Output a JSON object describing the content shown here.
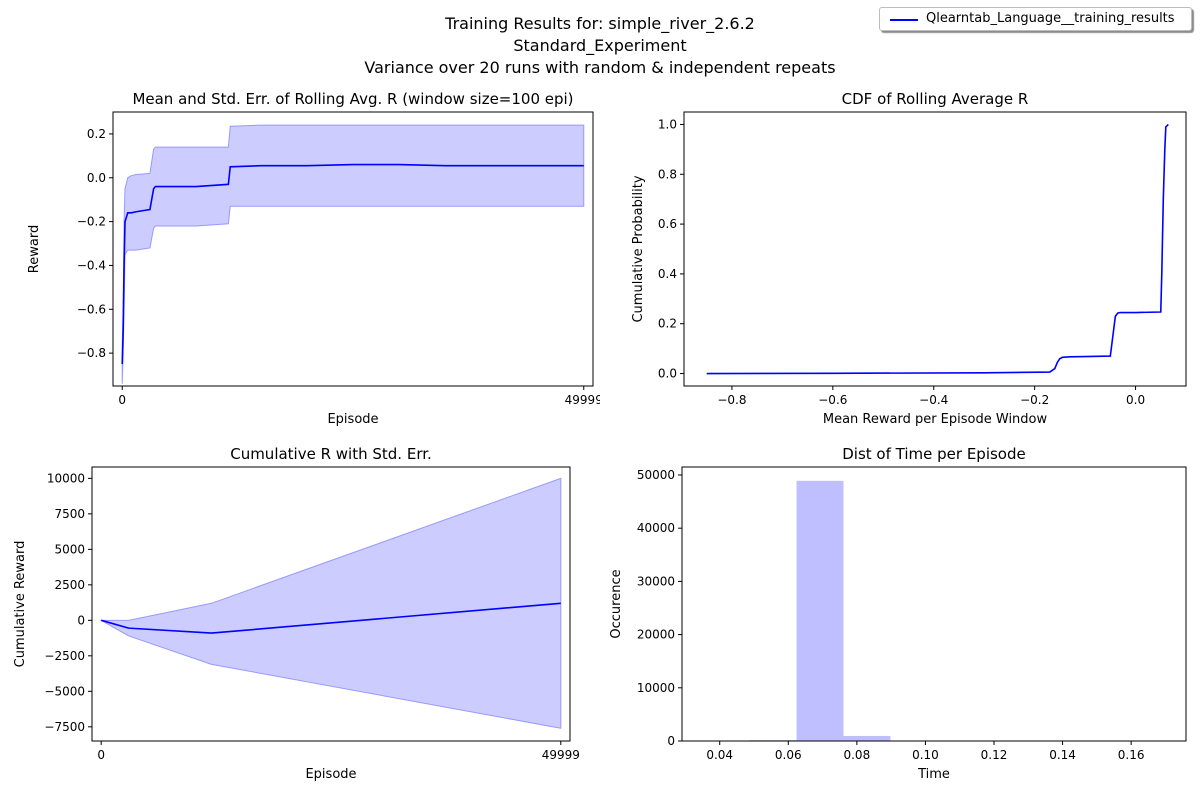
{
  "figure": {
    "title_lines": [
      "Training Results for: simple_river_2.6.2",
      "Standard_Experiment",
      "Variance over 20 runs with random & independent repeats"
    ],
    "legend_label": "Qlearntab_Language__training_results",
    "line_color": "#0000ff",
    "band_color": "#ccccff",
    "band_edge_color": "#9999ff"
  },
  "chart_data": [
    {
      "type": "line",
      "title": "Mean and Std. Err. of Rolling Avg. R (window size=100 epi)",
      "xlabel": "Episode",
      "ylabel": "Reward",
      "xlim": [
        -1000,
        51000
      ],
      "ylim": [
        -0.95,
        0.3
      ],
      "xticks": [
        0,
        49999
      ],
      "xtick_labels": [
        "0",
        "49999"
      ],
      "yticks": [
        -0.8,
        -0.6,
        -0.4,
        -0.2,
        0.0,
        0.2
      ],
      "ytick_labels": [
        "−0.8",
        "−0.6",
        "−0.4",
        "−0.2",
        "0.0",
        "0.2"
      ],
      "grid": false,
      "series": [
        {
          "x": [
            0,
            100,
            200,
            300,
            600,
            1000,
            1500,
            3000,
            3400,
            3600,
            5000,
            8000,
            11500,
            11700,
            15000,
            20000,
            25000,
            30000,
            35000,
            40000,
            45000,
            49999
          ],
          "mean": [
            -0.85,
            -0.7,
            -0.4,
            -0.2,
            -0.16,
            -0.16,
            -0.155,
            -0.145,
            -0.05,
            -0.04,
            -0.04,
            -0.04,
            -0.03,
            0.05,
            0.055,
            0.055,
            0.06,
            0.06,
            0.055,
            0.055,
            0.055,
            0.055
          ],
          "upper": [
            -0.76,
            -0.6,
            -0.2,
            -0.05,
            0.0,
            0.01,
            0.015,
            0.02,
            0.13,
            0.14,
            0.14,
            0.14,
            0.14,
            0.235,
            0.24,
            0.24,
            0.24,
            0.24,
            0.24,
            0.24,
            0.24,
            0.24
          ],
          "lower": [
            -0.94,
            -0.8,
            -0.6,
            -0.35,
            -0.33,
            -0.33,
            -0.33,
            -0.32,
            -0.23,
            -0.22,
            -0.22,
            -0.22,
            -0.21,
            -0.13,
            -0.13,
            -0.13,
            -0.13,
            -0.13,
            -0.13,
            -0.13,
            -0.13,
            -0.13
          ]
        }
      ]
    },
    {
      "type": "line",
      "title": "CDF of Rolling Average R",
      "xlabel": "Mean Reward per Episode Window",
      "ylabel": "Cumulative Probability",
      "xlim": [
        -0.895,
        0.1
      ],
      "ylim": [
        -0.05,
        1.05
      ],
      "xticks": [
        -0.8,
        -0.6,
        -0.4,
        -0.2,
        0.0
      ],
      "xtick_labels": [
        "−0.8",
        "−0.6",
        "−0.4",
        "−0.2",
        "0.0"
      ],
      "yticks": [
        0.0,
        0.2,
        0.4,
        0.6,
        0.8,
        1.0
      ],
      "ytick_labels": [
        "0.0",
        "0.2",
        "0.4",
        "0.6",
        "0.8",
        "1.0"
      ],
      "grid": false,
      "series": [
        {
          "x": [
            -0.85,
            -0.6,
            -0.3,
            -0.17,
            -0.16,
            -0.155,
            -0.15,
            -0.145,
            -0.13,
            -0.1,
            -0.05,
            -0.045,
            -0.04,
            -0.035,
            -0.03,
            0.0,
            0.05,
            0.052,
            0.055,
            0.058,
            0.06,
            0.065
          ],
          "y": [
            0.0,
            0.001,
            0.003,
            0.006,
            0.02,
            0.045,
            0.06,
            0.065,
            0.067,
            0.068,
            0.07,
            0.15,
            0.23,
            0.243,
            0.245,
            0.245,
            0.247,
            0.4,
            0.7,
            0.9,
            0.99,
            1.0
          ]
        }
      ]
    },
    {
      "type": "line",
      "title": "Cumulative R with Std. Err.",
      "xlabel": "Episode",
      "ylabel": "Cumulative Reward",
      "xlim": [
        -1000,
        51000
      ],
      "ylim": [
        -8500,
        10800
      ],
      "xticks": [
        0,
        49999
      ],
      "xtick_labels": [
        "0",
        "49999"
      ],
      "yticks": [
        -7500,
        -5000,
        -2500,
        0,
        2500,
        5000,
        7500,
        10000
      ],
      "ytick_labels": [
        "−7500",
        "−5000",
        "−2500",
        "0",
        "2500",
        "5000",
        "7500",
        "10000"
      ],
      "grid": false,
      "series": [
        {
          "x": [
            0,
            3000,
            12000,
            49999
          ],
          "mean": [
            0,
            -550,
            -900,
            1200
          ],
          "upper": [
            0,
            0,
            1200,
            10000
          ],
          "lower": [
            0,
            -1100,
            -3100,
            -7600
          ]
        }
      ]
    },
    {
      "type": "bar",
      "title": "Dist of Time per Episode",
      "xlabel": "Time",
      "ylabel": "Occurence",
      "xlim": [
        0.029,
        0.176
      ],
      "ylim": [
        0,
        51500
      ],
      "xticks": [
        0.04,
        0.06,
        0.08,
        0.1,
        0.12,
        0.14,
        0.16
      ],
      "xtick_labels": [
        "0.04",
        "0.06",
        "0.08",
        "0.10",
        "0.12",
        "0.14",
        "0.16"
      ],
      "yticks": [
        0,
        10000,
        20000,
        30000,
        40000,
        50000
      ],
      "ytick_labels": [
        "0",
        "10000",
        "20000",
        "30000",
        "40000",
        "50000"
      ],
      "grid": false,
      "bin_edges": [
        0.035,
        0.0487,
        0.0624,
        0.0761,
        0.0898,
        0.1035,
        0.1172,
        0.1309,
        0.1446,
        0.1583,
        0.172
      ],
      "values": [
        10,
        150,
        48900,
        950,
        15,
        5,
        3,
        2,
        1,
        1
      ]
    }
  ]
}
